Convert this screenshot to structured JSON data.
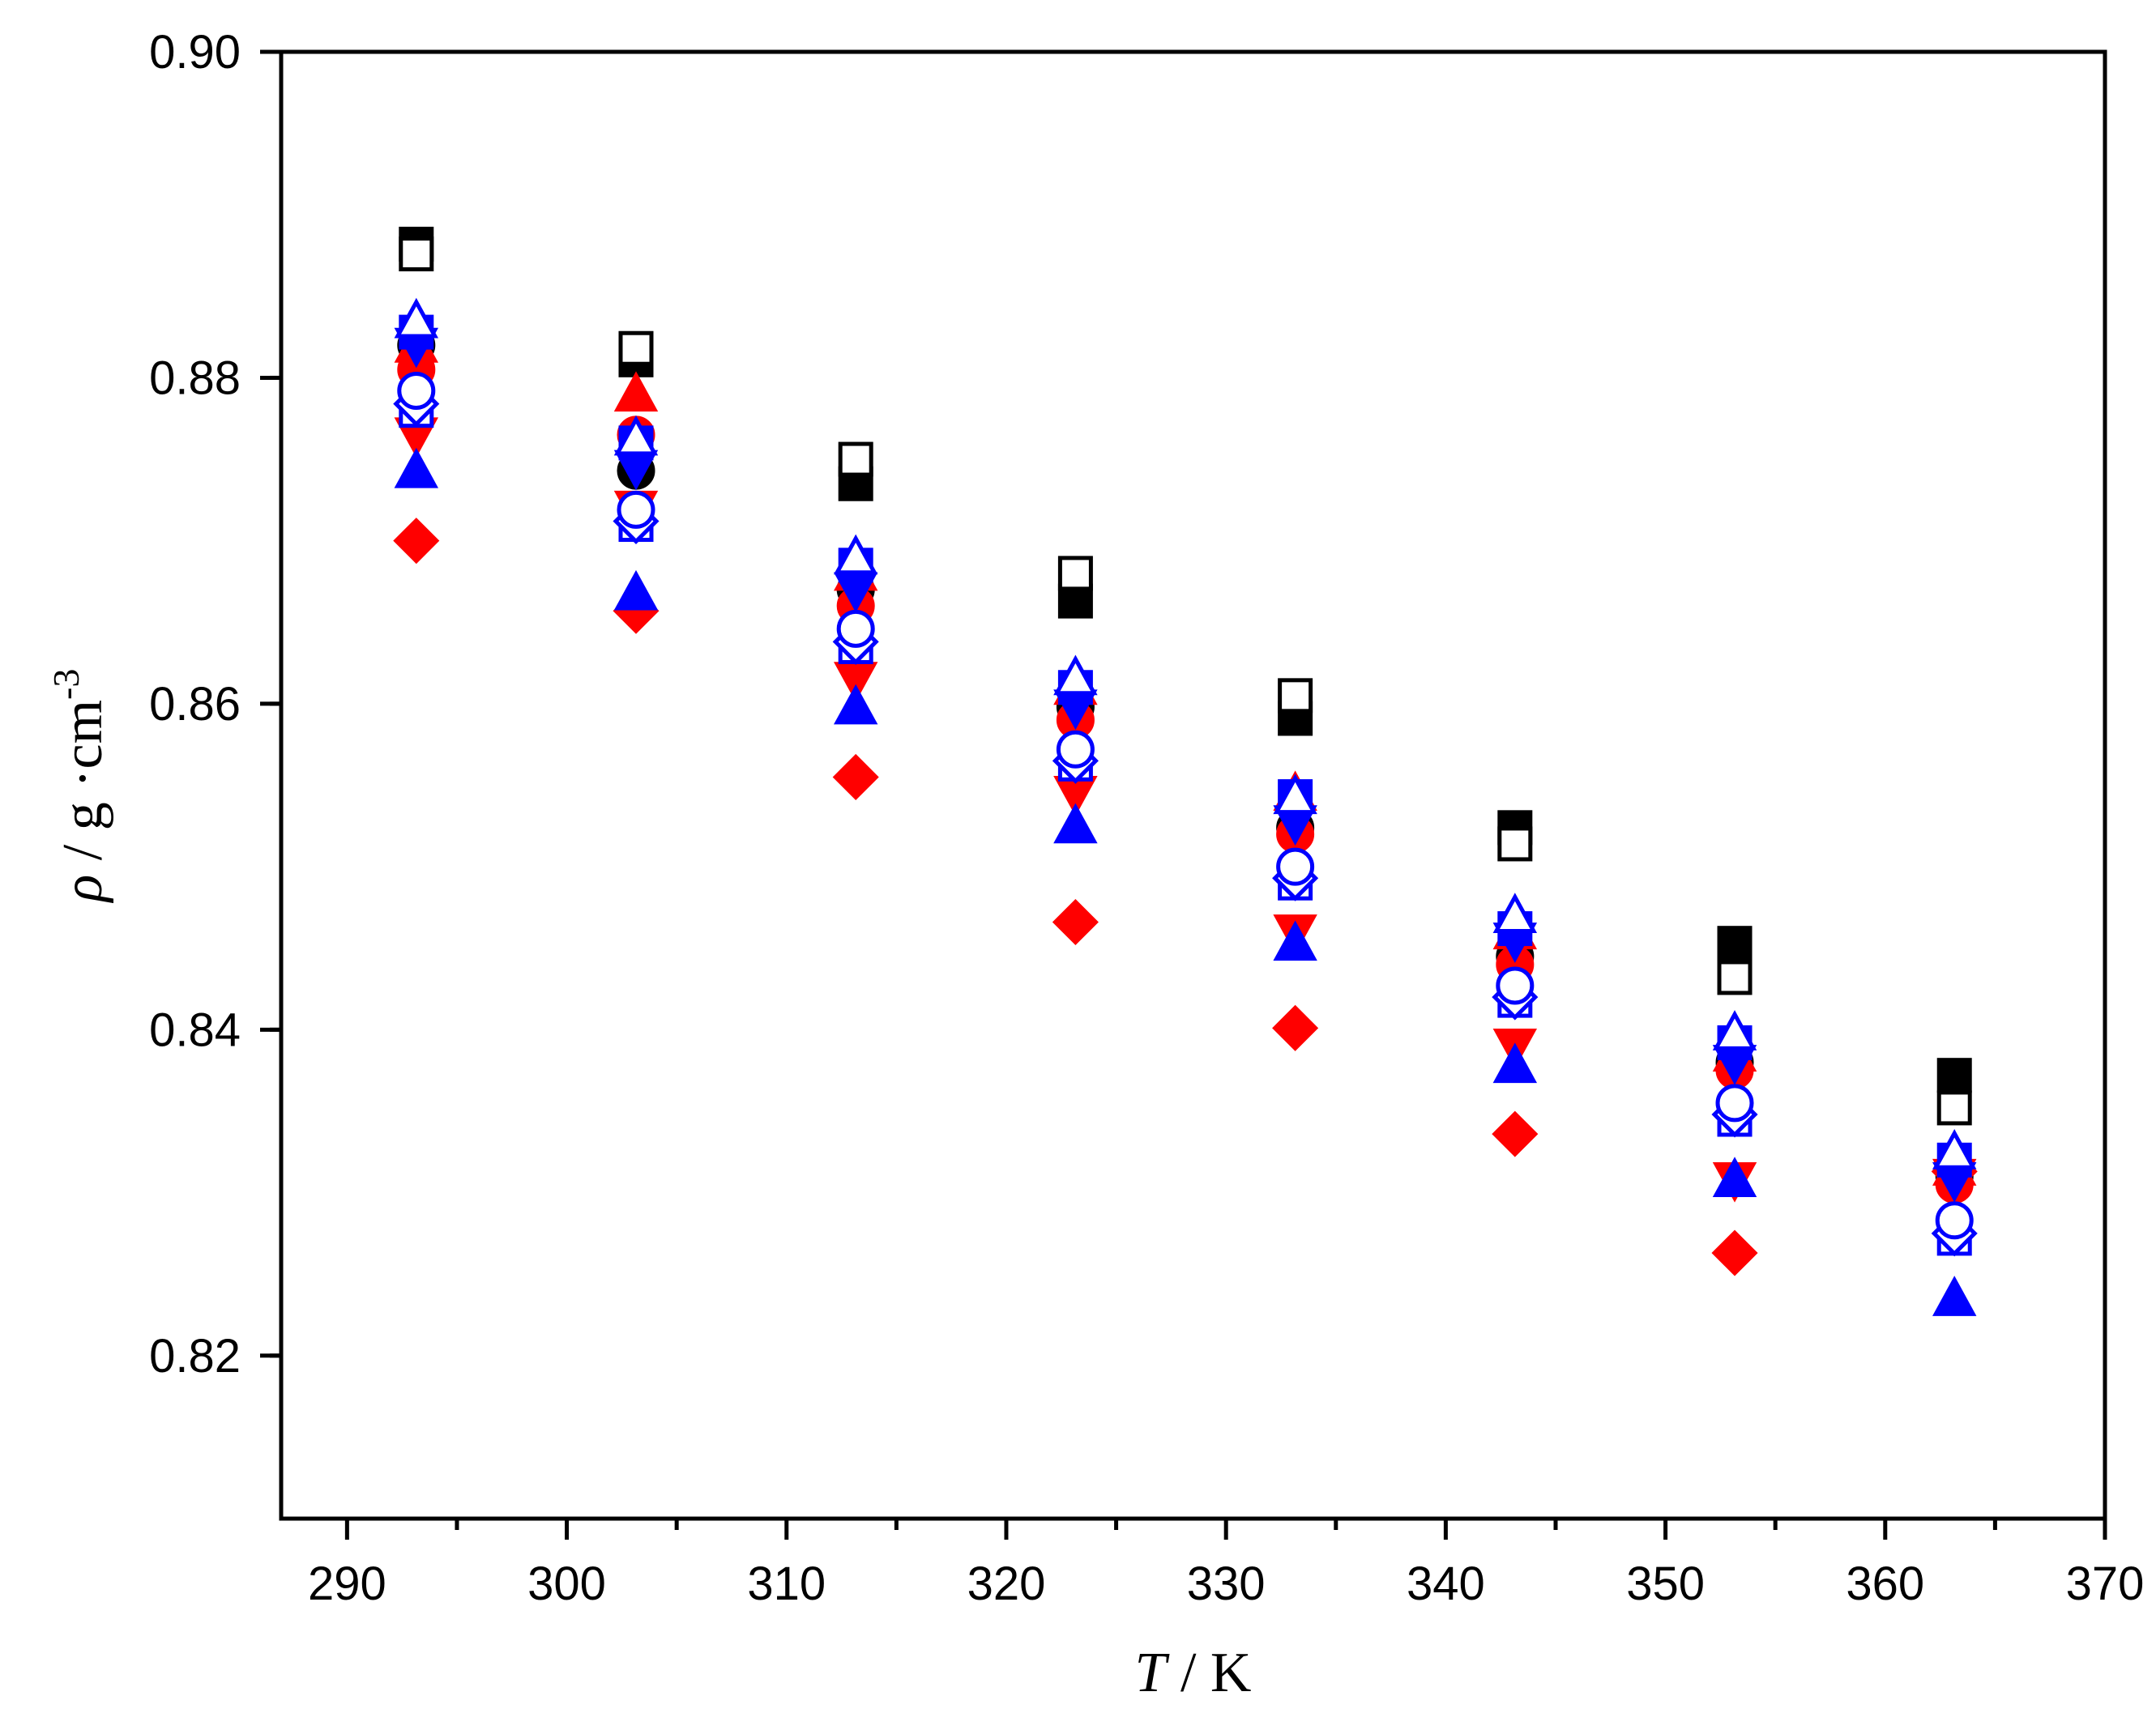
{
  "chart_data": {
    "type": "scatter",
    "xlabel": {
      "symbol": "T",
      "rest": " / K"
    },
    "ylabel": {
      "symbol": "ρ",
      "rest": " / g ·cm",
      "sup": "-3"
    },
    "xlim": [
      287,
      370
    ],
    "ylim": [
      0.81,
      0.9
    ],
    "x_ticks": [
      290,
      300,
      310,
      320,
      330,
      340,
      350,
      360,
      370
    ],
    "y_ticks": [
      0.82,
      0.84,
      0.86,
      0.88,
      0.9
    ],
    "y_tick_labels": [
      "0.82",
      "0.84",
      "0.86",
      "0.88",
      "0.90"
    ],
    "x_minor_step": 5,
    "y_minor_step": 0.01,
    "grid": false,
    "legend": "none",
    "x": [
      293.15,
      303.15,
      313.15,
      323.15,
      333.15,
      343.15,
      353.15,
      363.15
    ],
    "series": [
      {
        "marker": "square",
        "filled": true,
        "color": "#000000",
        "values": [
          0.8882,
          0.8811,
          0.8735,
          0.8663,
          0.8591,
          0.8524,
          0.8453,
          0.8372
        ]
      },
      {
        "marker": "square",
        "filled": false,
        "color": "#000000",
        "values": [
          0.8876,
          0.8818,
          0.875,
          0.868,
          0.8605,
          0.8514,
          0.8432,
          0.8352
        ]
      },
      {
        "marker": "circle",
        "filled": true,
        "color": "#000000",
        "values": [
          0.882,
          0.8743,
          0.867,
          0.8598,
          0.8524,
          0.8445,
          0.838,
          0.831
        ]
      },
      {
        "marker": "circle",
        "filled": true,
        "color": "#ff0000",
        "values": [
          0.8805,
          0.8765,
          0.866,
          0.859,
          0.852,
          0.844,
          0.8375,
          0.8305
        ]
      },
      {
        "marker": "triangle-up",
        "filled": true,
        "color": "#ff0000",
        "values": [
          0.882,
          0.879,
          0.868,
          0.861,
          0.8545,
          0.846,
          0.8385,
          0.8315
        ]
      },
      {
        "marker": "triangle-down",
        "filled": true,
        "color": "#ff0000",
        "values": [
          0.8765,
          0.872,
          0.8615,
          0.8545,
          0.846,
          0.839,
          0.8308,
          0.831
        ]
      },
      {
        "marker": "diamond",
        "filled": true,
        "color": "#ff0000",
        "values": [
          0.87,
          0.8657,
          0.8555,
          0.8466,
          0.8401,
          0.8336,
          0.8263,
          0.8313
        ]
      },
      {
        "marker": "square",
        "filled": true,
        "color": "#0000ff",
        "values": [
          0.8828,
          0.876,
          0.8685,
          0.861,
          0.8543,
          0.8462,
          0.8392,
          0.832
        ]
      },
      {
        "marker": "triangle-up",
        "filled": true,
        "color": "#0000ff",
        "values": [
          0.8743,
          0.8668,
          0.8598,
          0.8525,
          0.8453,
          0.8378,
          0.8308,
          0.8235
        ]
      },
      {
        "marker": "triangle-down",
        "filled": true,
        "color": "#0000ff",
        "values": [
          0.882,
          0.8745,
          0.867,
          0.8598,
          0.8527,
          0.8455,
          0.838,
          0.8308
        ]
      },
      {
        "marker": "triangle-up",
        "filled": false,
        "color": "#0000ff",
        "values": [
          0.8835,
          0.8763,
          0.869,
          0.8616,
          0.8543,
          0.847,
          0.8398,
          0.8325
        ]
      },
      {
        "marker": "square",
        "filled": false,
        "color": "#0000ff",
        "values": [
          0.878,
          0.871,
          0.8635,
          0.8563,
          0.849,
          0.8418,
          0.8345,
          0.8272
        ]
      },
      {
        "marker": "diamond",
        "filled": false,
        "color": "#0000ff",
        "values": [
          0.8784,
          0.8712,
          0.8638,
          0.8565,
          0.8493,
          0.842,
          0.8348,
          0.8275
        ]
      },
      {
        "marker": "circle",
        "filled": false,
        "color": "#0000ff",
        "values": [
          0.8792,
          0.8719,
          0.8646,
          0.8572,
          0.85,
          0.8427,
          0.8355,
          0.8283
        ]
      }
    ]
  }
}
